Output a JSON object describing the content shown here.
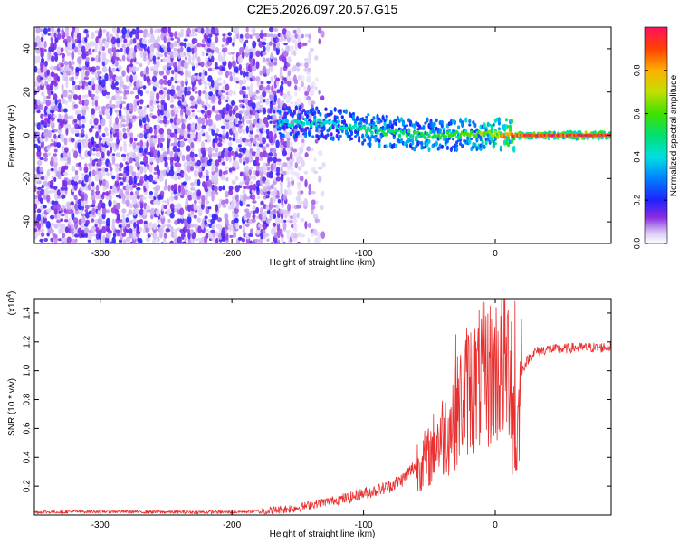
{
  "title": "C2E5.2026.097.20.57.G15",
  "chart_data": [
    {
      "type": "heatmap",
      "xlabel": "Height of straight line (km)",
      "ylabel": "Frequency (Hz)",
      "xlim": [
        -350,
        88
      ],
      "ylim": [
        -50,
        50
      ],
      "xticks": [
        -300,
        -200,
        -100,
        0
      ],
      "yticks": [
        -40,
        -20,
        0,
        20,
        40
      ],
      "colorbar": {
        "label": "Normalized spectral amplitude",
        "range": [
          0.0,
          1.0
        ],
        "ticks": [
          "0.0",
          "0.2",
          "0.4",
          "0.6",
          "0.8"
        ],
        "tick_values": [
          0.0,
          0.2,
          0.4,
          0.6,
          0.8
        ]
      },
      "noise_region": {
        "x_from": -350,
        "x_to": -160,
        "freq_from": -50,
        "freq_to": 50
      },
      "ridge": [
        {
          "x": -165,
          "freq": 5.5,
          "amp": 0.4
        },
        {
          "x": -140,
          "freq": 6.0,
          "amp": 0.45
        },
        {
          "x": -120,
          "freq": 5.0,
          "amp": 0.45
        },
        {
          "x": -100,
          "freq": 3.0,
          "amp": 0.5
        },
        {
          "x": -80,
          "freq": 1.5,
          "amp": 0.55
        },
        {
          "x": -60,
          "freq": 0.5,
          "amp": 0.55
        },
        {
          "x": -40,
          "freq": 0.0,
          "amp": 0.55
        },
        {
          "x": -20,
          "freq": 0.5,
          "amp": 0.6
        },
        {
          "x": 0,
          "freq": 0.5,
          "amp": 0.75
        },
        {
          "x": 15,
          "freq": 0.0,
          "amp": 0.95
        },
        {
          "x": 88,
          "freq": 0.0,
          "amp": 1.0
        }
      ]
    },
    {
      "type": "line",
      "xlabel": "Height of straight line (km)",
      "ylabel": "SNR (10 * v/v)",
      "yscale_label": "(x10",
      "yscale_exp": "4",
      "yscale_close": ")",
      "xlim": [
        -350,
        88
      ],
      "ylim": [
        0,
        1.5
      ],
      "xticks": [
        -300,
        -200,
        -100,
        0
      ],
      "yticks": [
        "0.2",
        "0.4",
        "0.6",
        "0.8",
        "1.0",
        "1.2",
        "1.4"
      ],
      "ytick_values": [
        0.2,
        0.4,
        0.6,
        0.8,
        1.0,
        1.2,
        1.4
      ],
      "color": "#e83030",
      "series": [
        {
          "name": "SNR",
          "x": [
            -350,
            -300,
            -250,
            -200,
            -170,
            -150,
            -130,
            -110,
            -100,
            -90,
            -80,
            -70,
            -60,
            -50,
            -45,
            -40,
            -35,
            -30,
            -25,
            -20,
            -15,
            -10,
            -5,
            0,
            5,
            10,
            13,
            15,
            20,
            25,
            30,
            40,
            50,
            60,
            70,
            80,
            88
          ],
          "values": [
            0.02,
            0.025,
            0.02,
            0.02,
            0.03,
            0.05,
            0.09,
            0.12,
            0.15,
            0.17,
            0.2,
            0.25,
            0.35,
            0.4,
            0.5,
            0.55,
            0.6,
            0.7,
            0.8,
            0.9,
            0.9,
            0.95,
            0.97,
            1.0,
            1.03,
            1.05,
            1.1,
            0.3,
            1.0,
            1.08,
            1.13,
            1.15,
            1.15,
            1.16,
            1.16,
            1.16,
            1.17
          ]
        }
      ],
      "peaks": [
        {
          "x": 15,
          "y": 1.48
        },
        {
          "x": -17,
          "y": 1.18
        },
        {
          "x": -30,
          "y": 1.25
        },
        {
          "x": 13,
          "y": 0.28
        }
      ]
    }
  ]
}
